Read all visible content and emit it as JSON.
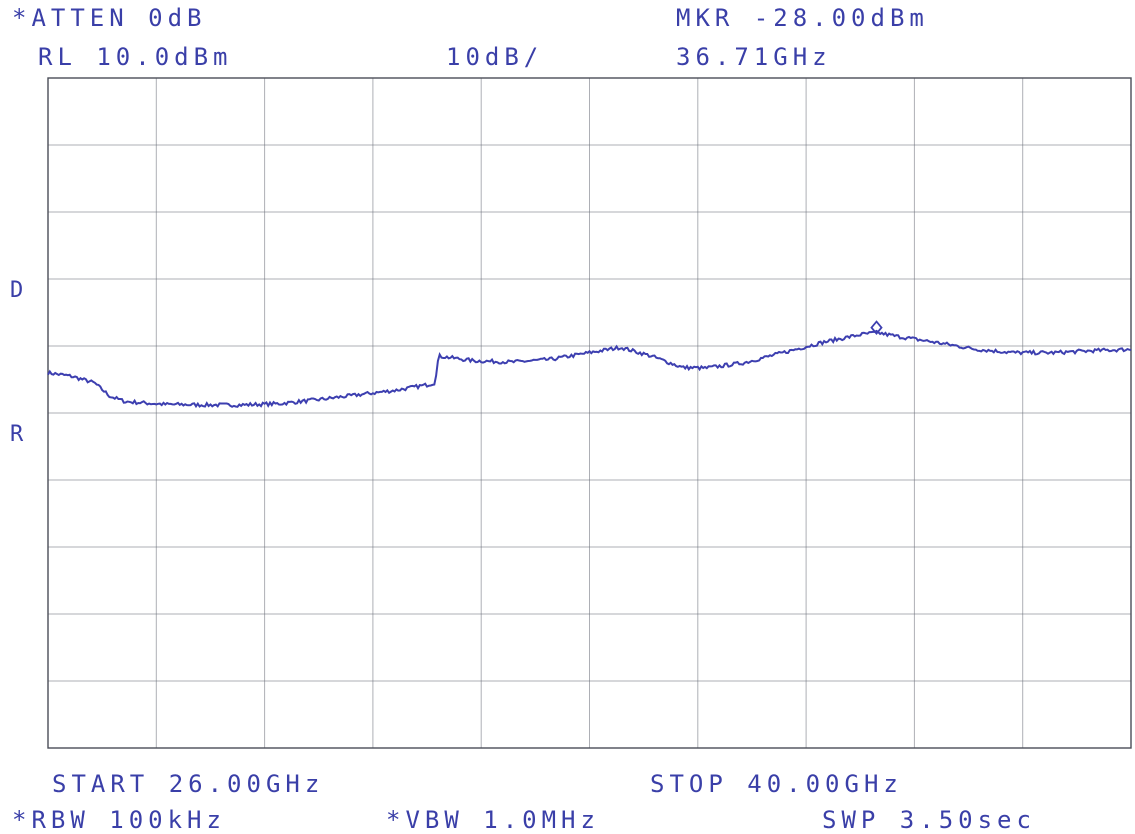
{
  "header": {
    "atten": "*ATTEN 0dB",
    "ref_level": "RL 10.0dBm",
    "scale": "10dB/",
    "marker_level": "MKR -28.00dBm",
    "marker_freq": "36.71GHz"
  },
  "side_labels": {
    "d": "D",
    "r": "R"
  },
  "footer": {
    "start": "START 26.00GHz",
    "stop": "STOP 40.00GHz",
    "rbw": "*RBW 100kHz",
    "vbw": "*VBW 1.0MHz",
    "sweep": "SWP 3.50sec"
  },
  "colors": {
    "trace": "#3d3fb0",
    "text": "#3a3fa8",
    "grid": "#6b6f7a"
  },
  "chart_data": {
    "type": "line",
    "title": "",
    "xlabel": "",
    "ylabel": "",
    "xlim": [
      26.0,
      40.0
    ],
    "ylim": [
      -90.0,
      10.0
    ],
    "x_unit": "GHz",
    "y_unit": "dBm",
    "grid": true,
    "grid_divisions": {
      "x": 10,
      "y": 10
    },
    "series": [
      {
        "x": [
          26.0,
          26.3,
          26.6,
          26.8,
          27.0,
          27.5,
          28.0,
          28.5,
          29.0,
          29.5,
          30.0,
          30.5,
          30.9,
          31.0,
          31.05,
          31.5,
          32.0,
          32.5,
          33.0,
          33.4,
          33.8,
          34.2,
          34.5,
          35.0,
          35.5,
          36.0,
          36.5,
          36.71,
          37.0,
          37.5,
          38.0,
          38.5,
          39.0,
          39.5,
          40.0
        ],
        "y": [
          -34.0,
          -34.5,
          -35.5,
          -37.5,
          -38.3,
          -38.7,
          -38.8,
          -38.8,
          -38.6,
          -38.0,
          -37.3,
          -36.6,
          -35.8,
          -35.5,
          -31.5,
          -32.2,
          -32.4,
          -32.0,
          -31.0,
          -30.2,
          -31.5,
          -33.2,
          -33.3,
          -32.5,
          -31.0,
          -29.5,
          -28.3,
          -28.0,
          -28.6,
          -29.5,
          -30.5,
          -31.0,
          -31.0,
          -30.7,
          -30.5
        ]
      }
    ],
    "marker": {
      "x": 36.71,
      "y": -28.0
    }
  }
}
